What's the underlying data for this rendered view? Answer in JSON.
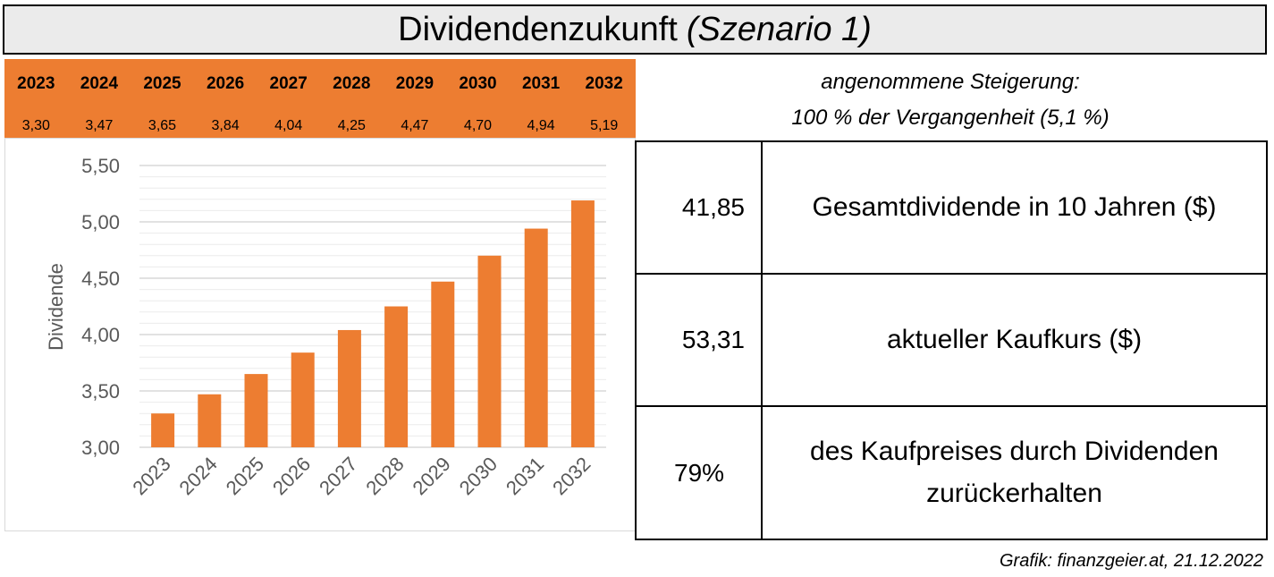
{
  "title": {
    "main": "Dividendenzukunft",
    "sub": "(Szenario 1)"
  },
  "years": [
    "2023",
    "2024",
    "2025",
    "2026",
    "2027",
    "2028",
    "2029",
    "2030",
    "2031",
    "2032"
  ],
  "values_text": [
    "3,30",
    "3,47",
    "3,65",
    "3,84",
    "4,04",
    "4,25",
    "4,47",
    "4,70",
    "4,94",
    "5,19"
  ],
  "assumption": {
    "line1": "angenommene Steigerung:",
    "line2": "100 % der Vergangenheit (5,1 %)"
  },
  "info": [
    {
      "number": "41,85",
      "text": "Gesamtdividende in 10 Jahren ($)"
    },
    {
      "number": "53,31",
      "text": "aktueller Kaufkurs ($)"
    },
    {
      "number": "79%",
      "text": "des Kaufpreises durch Dividenden zurückerhalten"
    }
  ],
  "source": "Grafik: finanzgeier.at, 21.12.2022",
  "colors": {
    "accent": "#ed7d31",
    "title_bg": "#ebebeb",
    "grid": "#d9d9d9",
    "axis_text": "#595959"
  },
  "chart_data": {
    "type": "bar",
    "categories": [
      "2023",
      "2024",
      "2025",
      "2026",
      "2027",
      "2028",
      "2029",
      "2030",
      "2031",
      "2032"
    ],
    "values": [
      3.3,
      3.47,
      3.65,
      3.84,
      4.04,
      4.25,
      4.47,
      4.7,
      4.94,
      5.19
    ],
    "title": "",
    "xlabel": "",
    "ylabel": "Dividende",
    "ylim": [
      3.0,
      5.5
    ],
    "yticks": [
      "3,00",
      "3,50",
      "4,00",
      "4,50",
      "5,00",
      "5,50"
    ],
    "grid": true,
    "legend": "none"
  }
}
